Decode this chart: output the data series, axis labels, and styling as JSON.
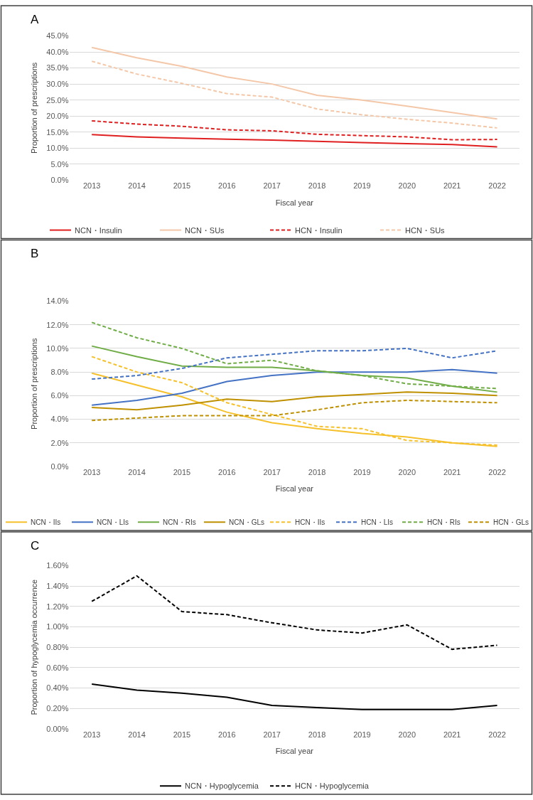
{
  "chart_data": [
    {
      "type": "line",
      "title": "A",
      "xlabel": "Fiscal year",
      "ylabel": "Proportion of prescriptions",
      "categories": [
        "2013",
        "2014",
        "2015",
        "2016",
        "2017",
        "2018",
        "2019",
        "2020",
        "2021",
        "2022"
      ],
      "series": [
        {
          "name": "NCN・Insulin",
          "color": "#e02020",
          "line_style": "solid",
          "values": [
            14.2,
            13.5,
            13.1,
            12.8,
            12.5,
            12.1,
            11.7,
            11.4,
            11.1,
            10.4
          ]
        },
        {
          "name": "NCN・SUs",
          "color": "#f4c7a8",
          "line_style": "solid",
          "values": [
            41.4,
            38.2,
            35.5,
            32.2,
            30.0,
            26.5,
            25.0,
            23.1,
            21.1,
            19.1
          ]
        },
        {
          "name": "HCN・Insulin",
          "color": "#e02020",
          "line_style": "dashed",
          "values": [
            18.5,
            17.5,
            16.8,
            15.7,
            15.4,
            14.3,
            13.9,
            13.5,
            12.6,
            12.7
          ]
        },
        {
          "name": "HCN・SUs",
          "color": "#f4c7a8",
          "line_style": "dashed",
          "values": [
            37.1,
            33.1,
            30.2,
            27.0,
            25.9,
            22.2,
            20.4,
            19.0,
            17.8,
            16.3
          ]
        }
      ],
      "ylim": [
        0,
        45
      ],
      "yticks": [
        {
          "value": 0,
          "label": "0.0%"
        },
        {
          "value": 5,
          "label": "5.0%"
        },
        {
          "value": 10,
          "label": "10.0%"
        },
        {
          "value": 15,
          "label": "15.0%"
        },
        {
          "value": 20,
          "label": "20.0%"
        },
        {
          "value": 25,
          "label": "25.0%"
        },
        {
          "value": 30,
          "label": "30.0%"
        },
        {
          "value": 35,
          "label": "35.0%"
        },
        {
          "value": 40,
          "label": "40.0%"
        },
        {
          "value": 45,
          "label": "45.0%"
        }
      ],
      "grid": "y",
      "legend": "bottom",
      "marker": "none"
    },
    {
      "type": "line",
      "title": "B",
      "xlabel": "Fiscal year",
      "ylabel": "Proportion of prescriptions",
      "categories": [
        "2013",
        "2014",
        "2015",
        "2016",
        "2017",
        "2018",
        "2019",
        "2020",
        "2021",
        "2022"
      ],
      "series": [
        {
          "name": "NCN・IIs",
          "color": "#f5c02a",
          "line_style": "solid",
          "values": [
            7.9,
            6.9,
            5.9,
            4.6,
            3.7,
            3.2,
            2.8,
            2.5,
            2.0,
            1.7
          ]
        },
        {
          "name": "NCN・LIs",
          "color": "#4472c4",
          "line_style": "solid",
          "values": [
            5.2,
            5.6,
            6.2,
            7.2,
            7.7,
            8.0,
            8.0,
            8.0,
            8.2,
            7.9
          ]
        },
        {
          "name": "NCN・RIs",
          "color": "#70ad47",
          "line_style": "solid",
          "values": [
            10.2,
            9.3,
            8.5,
            8.4,
            8.4,
            8.1,
            7.7,
            7.5,
            6.8,
            6.3
          ]
        },
        {
          "name": "NCN・GLs",
          "color": "#bf9000",
          "line_style": "solid",
          "values": [
            5.0,
            4.8,
            5.2,
            5.7,
            5.5,
            5.9,
            6.1,
            6.3,
            6.2,
            6.0
          ]
        },
        {
          "name": "HCN・IIs",
          "color": "#f5c02a",
          "line_style": "dashed",
          "values": [
            9.3,
            8.0,
            7.1,
            5.4,
            4.4,
            3.4,
            3.2,
            2.2,
            2.0,
            1.8
          ]
        },
        {
          "name": "HCN・LIs",
          "color": "#4472c4",
          "line_style": "dashed",
          "values": [
            7.4,
            7.7,
            8.3,
            9.2,
            9.5,
            9.8,
            9.8,
            10.0,
            9.2,
            9.8
          ]
        },
        {
          "name": "HCN・RIs",
          "color": "#70ad47",
          "line_style": "dashed",
          "values": [
            12.2,
            10.9,
            10.0,
            8.7,
            9.0,
            8.1,
            7.7,
            7.0,
            6.8,
            6.6
          ]
        },
        {
          "name": "HCN・GLs",
          "color": "#bf9000",
          "line_style": "dashed",
          "values": [
            3.9,
            4.1,
            4.3,
            4.3,
            4.3,
            4.8,
            5.4,
            5.6,
            5.5,
            5.4
          ]
        }
      ],
      "ylim": [
        0,
        14
      ],
      "yticks": [
        {
          "value": 0,
          "label": "0.0%"
        },
        {
          "value": 2,
          "label": "2.0%"
        },
        {
          "value": 4,
          "label": "4.0%"
        },
        {
          "value": 6,
          "label": "6.0%"
        },
        {
          "value": 8,
          "label": "8.0%"
        },
        {
          "value": 10,
          "label": "10.0%"
        },
        {
          "value": 12,
          "label": "12.0%"
        },
        {
          "value": 14,
          "label": "14.0%"
        }
      ],
      "grid": "y",
      "legend": "bottom",
      "marker": "none"
    },
    {
      "type": "line",
      "title": "C",
      "xlabel": "Fiscal year",
      "ylabel": "Proportion of hypoglycemia occurrence",
      "categories": [
        "2013",
        "2014",
        "2015",
        "2016",
        "2017",
        "2018",
        "2019",
        "2020",
        "2021",
        "2022"
      ],
      "series": [
        {
          "name": "NCN・Hypoglycemia",
          "color": "#000000",
          "line_style": "solid",
          "values": [
            0.44,
            0.38,
            0.35,
            0.31,
            0.23,
            0.21,
            0.19,
            0.19,
            0.19,
            0.23
          ]
        },
        {
          "name": "HCN・Hypoglycemia",
          "color": "#000000",
          "line_style": "dashed",
          "values": [
            1.25,
            1.5,
            1.15,
            1.12,
            1.04,
            0.97,
            0.94,
            1.02,
            0.78,
            0.82
          ]
        }
      ],
      "ylim": [
        0,
        1.6
      ],
      "yticks": [
        {
          "value": 0,
          "label": "0.00%"
        },
        {
          "value": 0.2,
          "label": "0.20%"
        },
        {
          "value": 0.4,
          "label": "0.40%"
        },
        {
          "value": 0.6,
          "label": "0.60%"
        },
        {
          "value": 0.8,
          "label": "0.80%"
        },
        {
          "value": 1.0,
          "label": "1.00%"
        },
        {
          "value": 1.2,
          "label": "1.20%"
        },
        {
          "value": 1.4,
          "label": "1.40%"
        },
        {
          "value": 1.6,
          "label": "1.60%"
        }
      ],
      "grid": "y",
      "legend": "bottom",
      "marker": "none"
    }
  ]
}
